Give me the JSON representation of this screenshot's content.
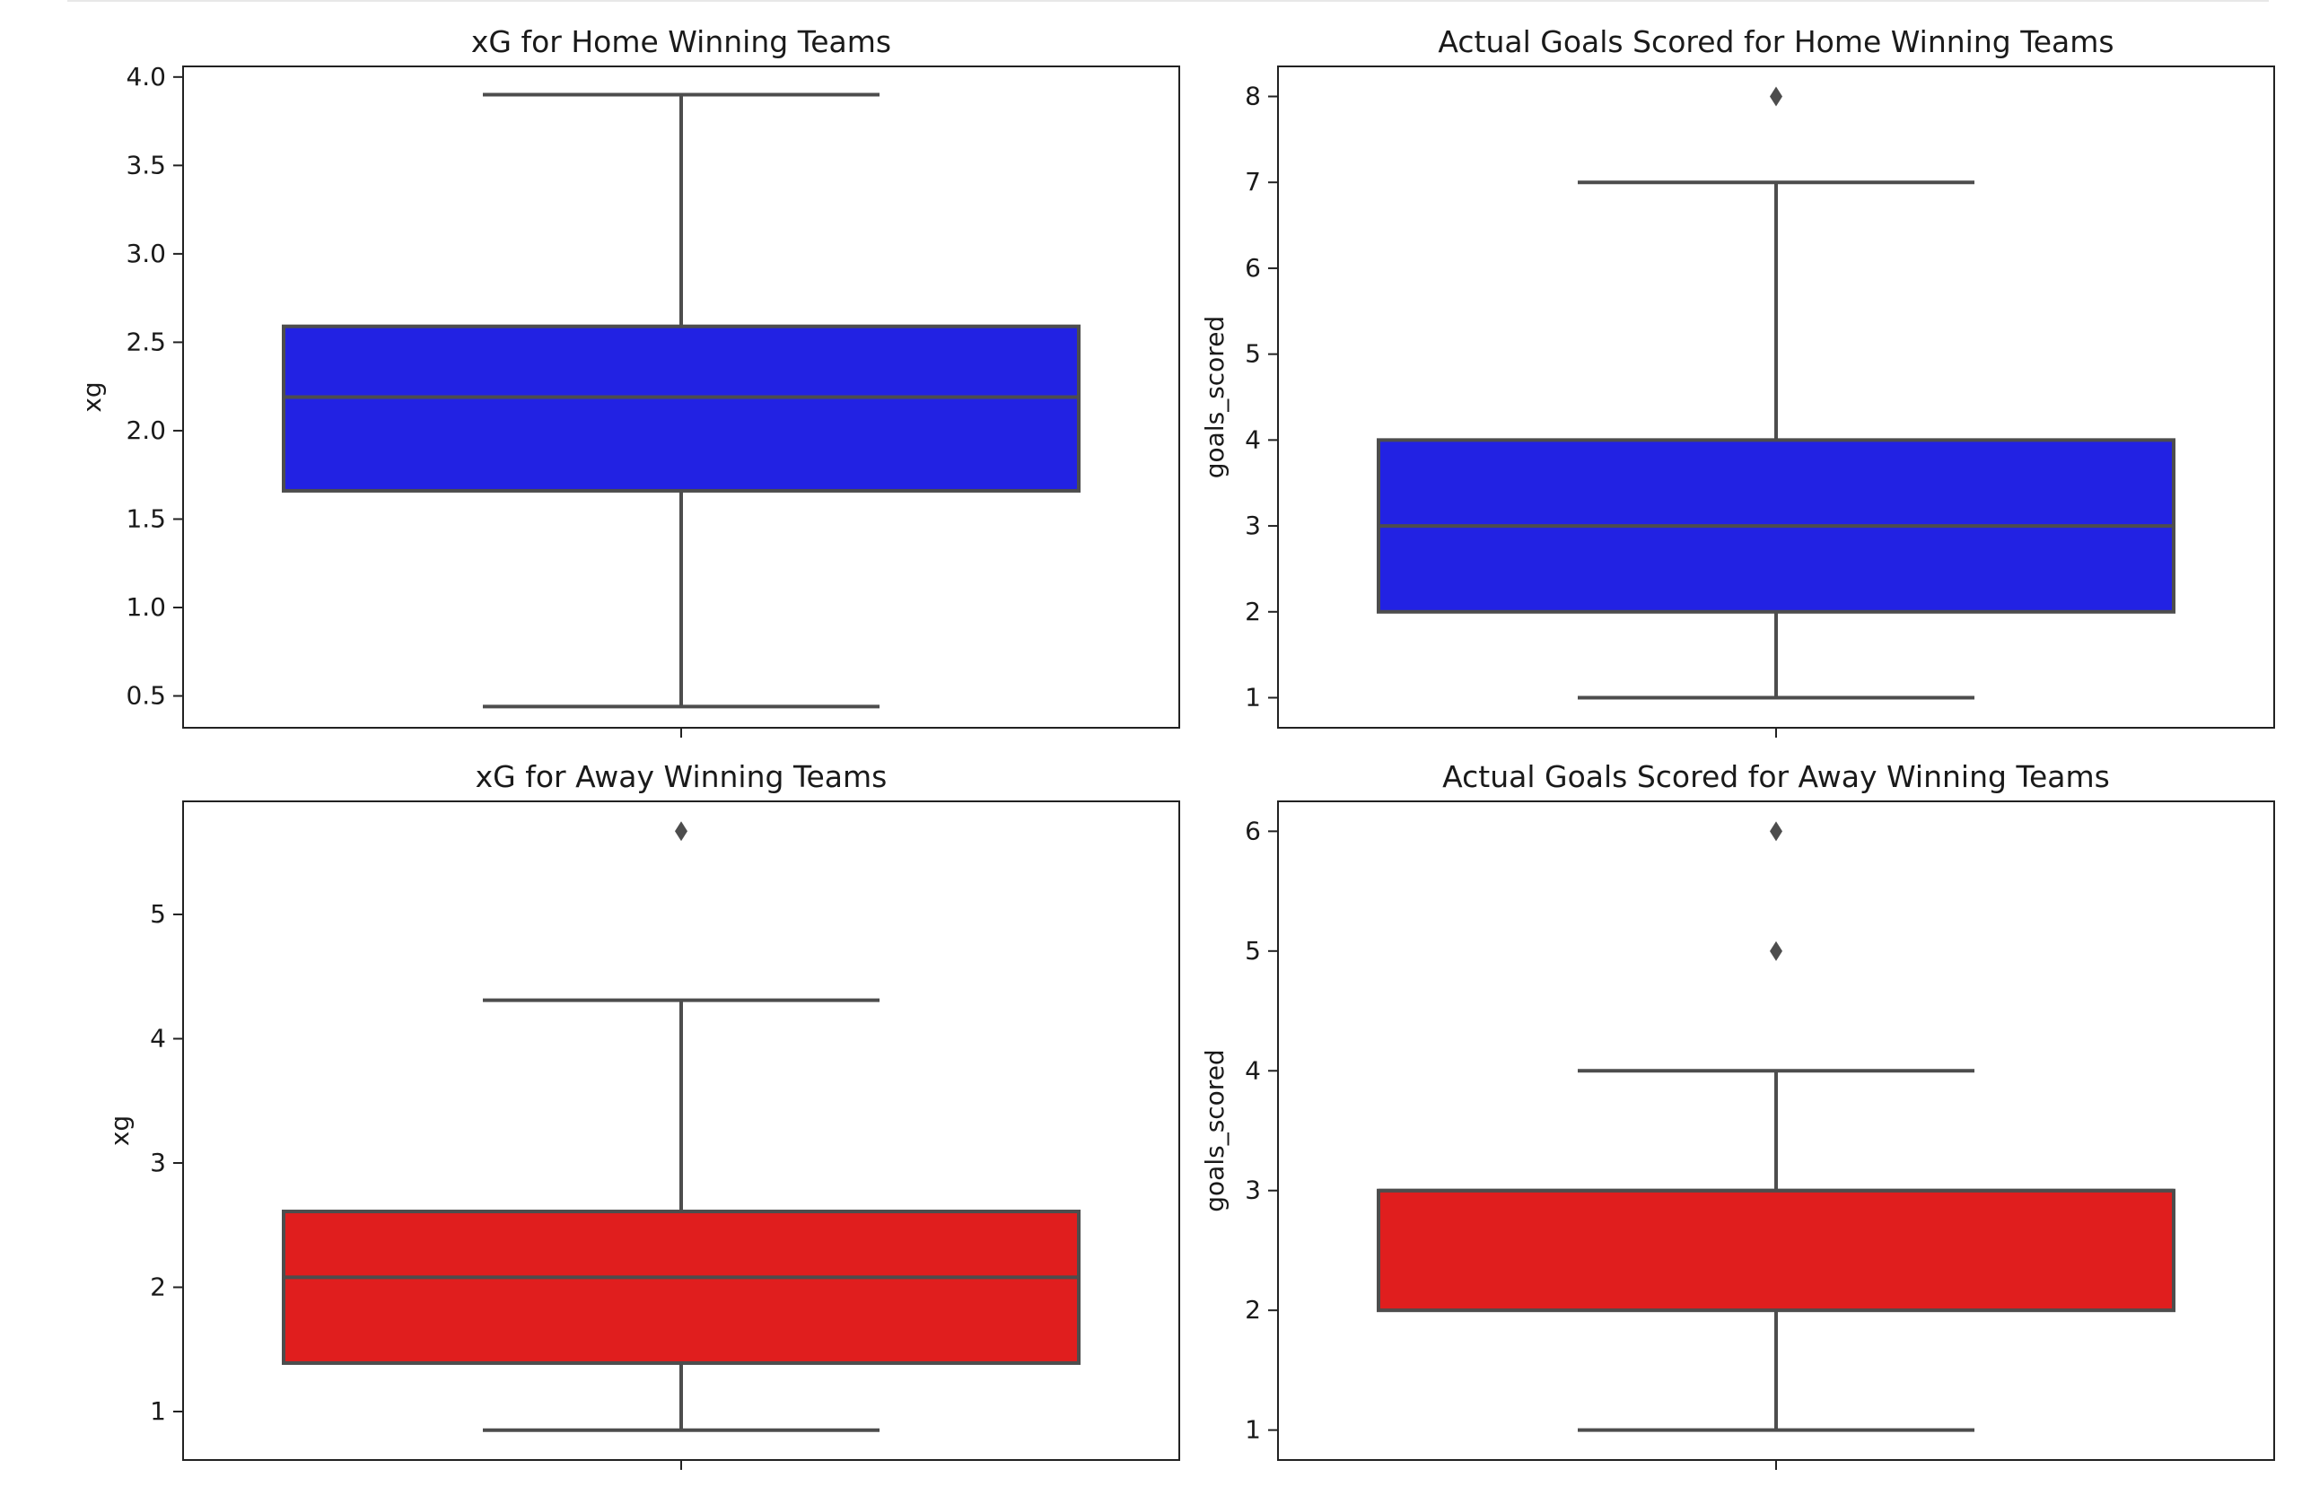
{
  "chart_data": [
    {
      "type": "box",
      "title": "xG for Home Winning Teams",
      "xlabel": "",
      "ylabel": "xg",
      "ylim": [
        0.32,
        4.06
      ],
      "yticks": [
        0.5,
        1.0,
        1.5,
        2.0,
        2.5,
        3.0,
        3.5,
        4.0
      ],
      "ytick_labels": [
        "0.5",
        "1.0",
        "1.5",
        "2.0",
        "2.5",
        "3.0",
        "3.5",
        "4.0"
      ],
      "box": {
        "whisker_low": 0.44,
        "q1": 1.66,
        "median": 2.19,
        "q3": 2.59,
        "whisker_high": 3.9
      },
      "outliers": [],
      "color": "#2222e3"
    },
    {
      "type": "box",
      "title": "Actual Goals Scored for Home Winning Teams",
      "xlabel": "",
      "ylabel": "goals_scored",
      "ylim": [
        0.65,
        8.35
      ],
      "yticks": [
        1,
        2,
        3,
        4,
        5,
        6,
        7,
        8
      ],
      "ytick_labels": [
        "1",
        "2",
        "3",
        "4",
        "5",
        "6",
        "7",
        "8"
      ],
      "box": {
        "whisker_low": 1,
        "q1": 2,
        "median": 3,
        "q3": 4,
        "whisker_high": 7
      },
      "outliers": [
        8
      ],
      "color": "#2222e3"
    },
    {
      "type": "box",
      "title": "xG for Away Winning Teams",
      "xlabel": "",
      "ylabel": "xg",
      "ylim": [
        0.61,
        5.91
      ],
      "yticks": [
        1,
        2,
        3,
        4,
        5
      ],
      "ytick_labels": [
        "1",
        "2",
        "3",
        "4",
        "5"
      ],
      "box": {
        "whisker_low": 0.85,
        "q1": 1.39,
        "median": 2.08,
        "q3": 2.61,
        "whisker_high": 4.31
      },
      "outliers": [
        5.67
      ],
      "color": "#e01e1e"
    },
    {
      "type": "box",
      "title": "Actual Goals Scored for Away Winning Teams",
      "xlabel": "",
      "ylabel": "goals_scored",
      "ylim": [
        0.75,
        6.25
      ],
      "yticks": [
        1,
        2,
        3,
        4,
        5,
        6
      ],
      "ytick_labels": [
        "1",
        "2",
        "3",
        "4",
        "5",
        "6"
      ],
      "box": {
        "whisker_low": 1,
        "q1": 2,
        "median": 3,
        "q3": 3,
        "whisker_high": 4
      },
      "outliers": [
        5,
        6
      ],
      "color": "#e01e1e"
    }
  ]
}
